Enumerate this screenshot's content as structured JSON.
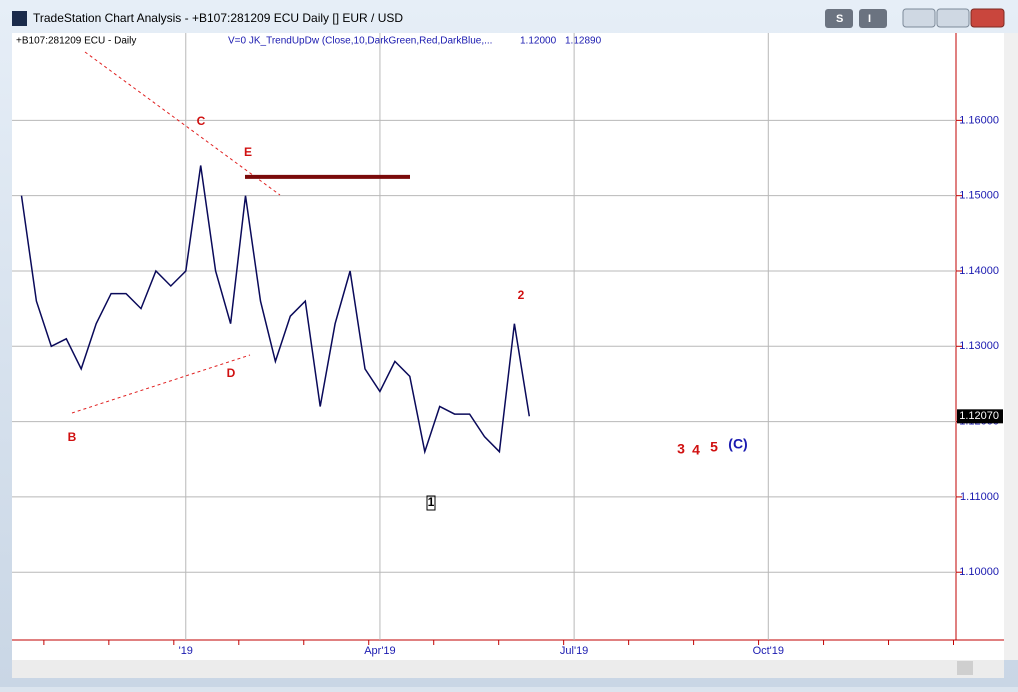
{
  "window": {
    "title": "TradeStation Chart Analysis - +B107:281209 ECU Daily [] EUR / USD",
    "buttons": [
      "S",
      "I"
    ]
  },
  "chart_data": {
    "type": "line",
    "symbol": "+B107:281209 ECU - Daily",
    "indicator": "V=0  JK_TrendUpDw (Close,10,DarkGreen,Red,DarkBlue,...",
    "readouts": [
      "1.12000",
      "1.12890"
    ],
    "categories": [
      null,
      null,
      null,
      null,
      null,
      null,
      null,
      null,
      null,
      null,
      null,
      "'19",
      null,
      null,
      null,
      null,
      null,
      null,
      null,
      null,
      null,
      null,
      null,
      null,
      "Apr'19",
      null,
      null,
      null,
      null,
      null,
      null,
      null,
      null,
      null,
      null,
      null,
      null,
      "Jul'19",
      null,
      null,
      null,
      null,
      null,
      null,
      null,
      null,
      null,
      null,
      null,
      null,
      "Oct'19",
      null,
      null,
      null,
      null,
      null,
      null,
      null,
      null,
      null,
      null,
      null,
      null
    ],
    "series": [
      {
        "name": "EUR / USD",
        "color": "#0a0a5a",
        "values": [
          1.15,
          1.136,
          1.13,
          1.131,
          1.127,
          1.133,
          1.137,
          1.137,
          1.135,
          1.14,
          1.138,
          1.14,
          1.154,
          1.14,
          1.133,
          1.15,
          1.136,
          1.128,
          1.134,
          1.136,
          1.122,
          1.133,
          1.14,
          1.127,
          1.124,
          1.128,
          1.126,
          1.116,
          1.122,
          1.121,
          1.121,
          1.118,
          1.116,
          1.133,
          1.1207,
          null,
          null,
          null,
          null,
          null,
          null,
          null,
          null,
          null,
          null,
          null,
          null,
          null,
          null,
          null,
          null,
          null,
          null,
          null,
          null,
          null,
          null,
          null,
          null,
          null,
          null,
          null,
          null
        ]
      }
    ],
    "ylim": [
      1.091,
      1.1716
    ],
    "yticks": [
      {
        "value": 1.1,
        "label": "1.10000"
      },
      {
        "value": 1.11,
        "label": "1.11000"
      },
      {
        "value": 1.12,
        "label": "1.12000"
      },
      {
        "value": 1.13,
        "label": "1.13000"
      },
      {
        "value": 1.14,
        "label": "1.14000"
      },
      {
        "value": 1.15,
        "label": "1.15000"
      },
      {
        "value": 1.16,
        "label": "1.16000"
      }
    ],
    "last_price": {
      "value": 1.1207,
      "label": "1.12070"
    },
    "level": {
      "value": 1.1525,
      "color": "#7a0a0a"
    },
    "grid": true,
    "annotations": [
      {
        "text": "C",
        "color": "#d01010"
      },
      {
        "text": "E",
        "color": "#d01010"
      },
      {
        "text": "D",
        "color": "#d01010"
      },
      {
        "text": "B",
        "color": "#d01010"
      },
      {
        "text": "1",
        "color": "#000000"
      },
      {
        "text": "2",
        "color": "#d01010"
      },
      {
        "text": "3",
        "color": "#d01010"
      },
      {
        "text": "4",
        "color": "#d01010"
      },
      {
        "text": "5",
        "color": "#d01010"
      },
      {
        "text": "(C)",
        "color": "#1a1ab0"
      }
    ]
  }
}
